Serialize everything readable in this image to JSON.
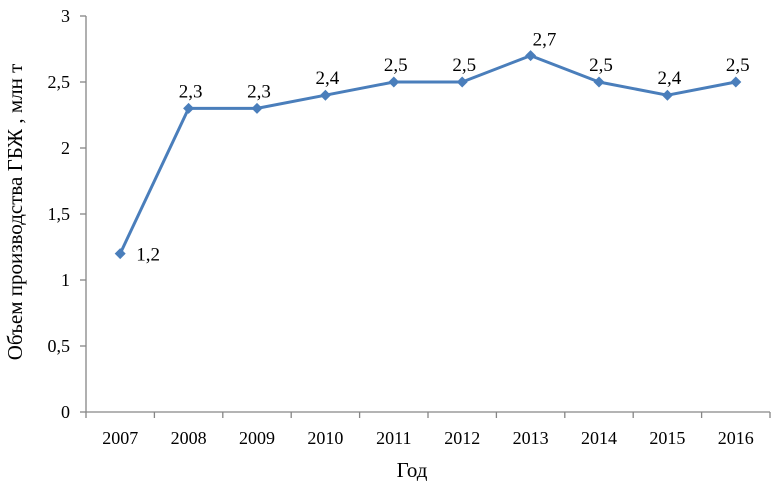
{
  "chart_data": {
    "type": "line",
    "title": "",
    "xlabel": "Год",
    "ylabel": "Объем производства ГБЖ , млн т",
    "categories": [
      "2007",
      "2008",
      "2009",
      "2010",
      "2011",
      "2012",
      "2013",
      "2014",
      "2015",
      "2016"
    ],
    "series": [
      {
        "values": [
          1.2,
          2.3,
          2.3,
          2.4,
          2.5,
          2.5,
          2.7,
          2.5,
          2.4,
          2.5
        ],
        "labels": [
          "1,2",
          "2,3",
          "2,3",
          "2,4",
          "2,5",
          "2,5",
          "2,7",
          "2,5",
          "2,4",
          "2,5"
        ],
        "color": "#4a7ebb",
        "marker": "diamond"
      }
    ],
    "ylim": [
      0,
      3
    ],
    "yticks": [
      0,
      0.5,
      1,
      1.5,
      2,
      2.5,
      3
    ],
    "ytick_labels": [
      "0",
      "0,5",
      "1",
      "1,5",
      "2",
      "2,5",
      "3"
    ],
    "grid": false,
    "legend": "none",
    "axis_color": "#868686"
  }
}
